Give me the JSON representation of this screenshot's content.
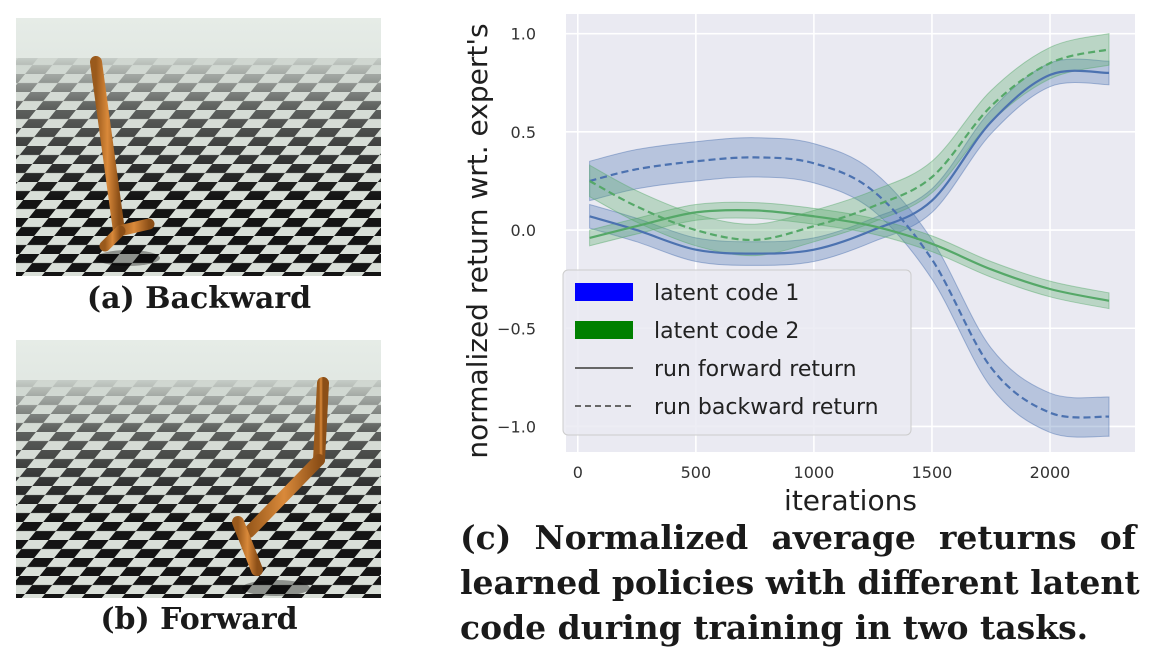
{
  "panels": {
    "a": {
      "caption": "(a) Backward"
    },
    "b": {
      "caption": "(b) Forward"
    },
    "c": {
      "caption_lines": [
        "(c)  Normalized  average  returns  of",
        "learned policies with different latent",
        "code during training in two tasks."
      ]
    }
  },
  "chart_data": {
    "type": "line",
    "xlabel": "iterations",
    "ylabel": "normalized return wrt. expert's",
    "xlim": [
      -50,
      2360
    ],
    "ylim": [
      -1.13,
      1.1
    ],
    "xticks": [
      0,
      500,
      1000,
      1500,
      2000
    ],
    "yticks": [
      1.0,
      0.5,
      0.0,
      -0.5,
      -1.0
    ],
    "ytick_labels": [
      "1.0",
      "0.5",
      "0.0",
      "−0.5",
      "−1.0"
    ],
    "grid": true,
    "legend_position": "lower-left",
    "legend": [
      {
        "label": "latent code 1",
        "kind": "patch",
        "color": "#0000ff"
      },
      {
        "label": "latent code 2",
        "kind": "patch",
        "color": "#008000"
      },
      {
        "label": "run forward return",
        "kind": "solid-line",
        "color": "#666666"
      },
      {
        "label": "run backward return",
        "kind": "dashed-line",
        "color": "#666666"
      }
    ],
    "colors": {
      "code1": "#4c72b0",
      "code2": "#55a868",
      "background": "#eaeaf2"
    },
    "x": [
      50,
      250,
      500,
      750,
      1000,
      1250,
      1500,
      1750,
      2000,
      2250
    ],
    "series": [
      {
        "code": "code1",
        "style": "solid",
        "values": [
          0.07,
          0.0,
          -0.1,
          -0.12,
          -0.1,
          0.0,
          0.15,
          0.55,
          0.79,
          0.8
        ],
        "band": 0.06
      },
      {
        "code": "code1",
        "style": "dashed",
        "values": [
          0.25,
          0.31,
          0.35,
          0.37,
          0.34,
          0.2,
          -0.15,
          -0.7,
          -0.93,
          -0.95
        ],
        "band": 0.1
      },
      {
        "code": "code2",
        "style": "solid",
        "values": [
          -0.04,
          0.02,
          0.09,
          0.1,
          0.07,
          0.02,
          -0.07,
          -0.2,
          -0.3,
          -0.36
        ],
        "band": 0.04
      },
      {
        "code": "code2",
        "style": "dashed",
        "values": [
          0.25,
          0.12,
          0.0,
          -0.05,
          0.02,
          0.12,
          0.27,
          0.63,
          0.85,
          0.92
        ],
        "band": 0.08
      }
    ]
  }
}
